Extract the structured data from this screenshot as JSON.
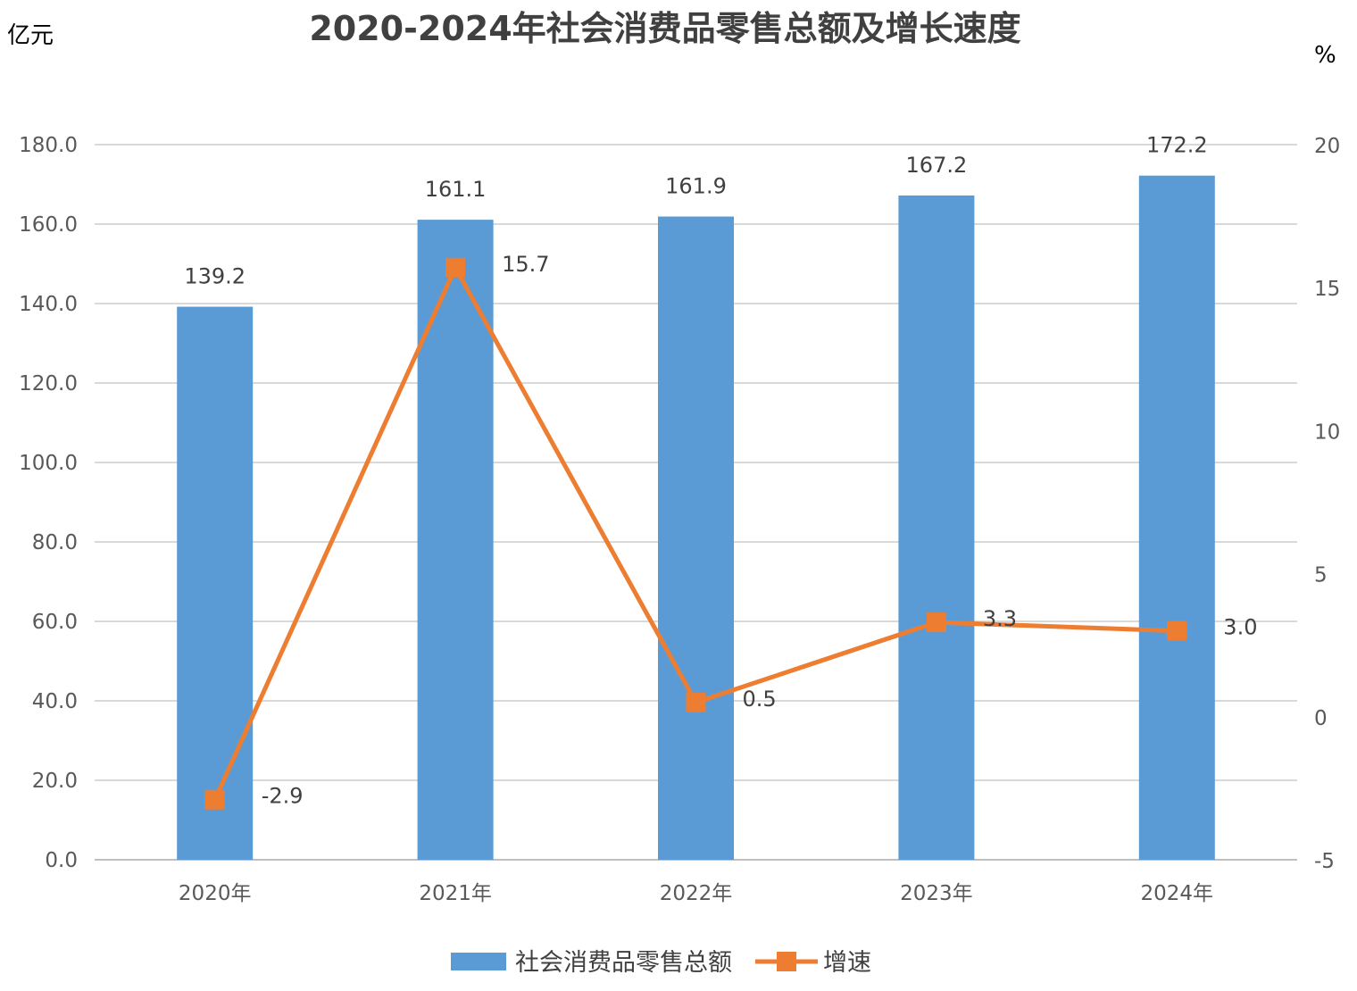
{
  "chart_data": {
    "type": "bar",
    "title": "2020-2024年社会消费品零售总额及增长速度",
    "ylabel": "亿元",
    "y2label": "%",
    "categories": [
      "2020年",
      "2021年",
      "2022年",
      "2023年",
      "2024年"
    ],
    "ylim": [
      0,
      180
    ],
    "y2lim": [
      -5,
      20
    ],
    "yticks": [
      "0.0",
      "20.0",
      "40.0",
      "60.0",
      "80.0",
      "100.0",
      "120.0",
      "140.0",
      "160.0",
      "180.0"
    ],
    "y2ticks": [
      "-5",
      "0",
      "5",
      "10",
      "15",
      "20"
    ],
    "series": [
      {
        "name": "社会消费品零售总额",
        "type": "bar",
        "axis": "left",
        "values": [
          139.2,
          161.1,
          161.9,
          167.2,
          172.2
        ],
        "labels": [
          "139.2",
          "161.1",
          "161.9",
          "167.2",
          "172.2"
        ],
        "color": "#5B9BD5"
      },
      {
        "name": "增速",
        "type": "line",
        "axis": "right",
        "values": [
          -2.9,
          15.7,
          0.5,
          3.3,
          3.0
        ],
        "labels": [
          "-2.9",
          "15.7",
          "0.5",
          "3.3",
          "3.0"
        ],
        "color": "#ED7D31"
      }
    ],
    "grid": true,
    "legend": "bottom"
  }
}
